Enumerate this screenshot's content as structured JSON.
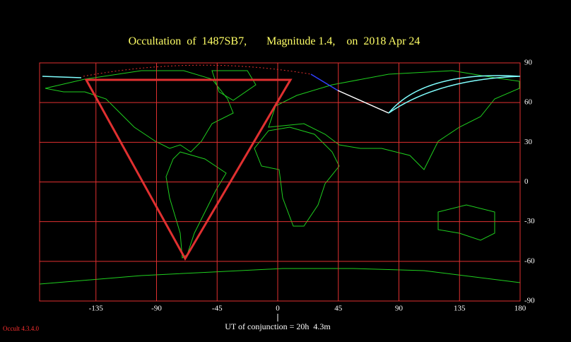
{
  "title": "Occultation  of  1487SB7,       Magnitude 1.4,    on  2018 Apr 24",
  "map": {
    "xlim": [
      -180,
      180
    ],
    "ylim": [
      -90,
      90
    ],
    "xticks": [
      -135,
      -90,
      -45,
      0,
      45,
      90,
      135,
      180
    ],
    "yticks": [
      90,
      60,
      30,
      0,
      -30,
      -60,
      -90
    ]
  },
  "footer": {
    "conjunction": "UT of conjunction = 20h  4.3m",
    "version": "Occult 4.3.4.0"
  }
}
